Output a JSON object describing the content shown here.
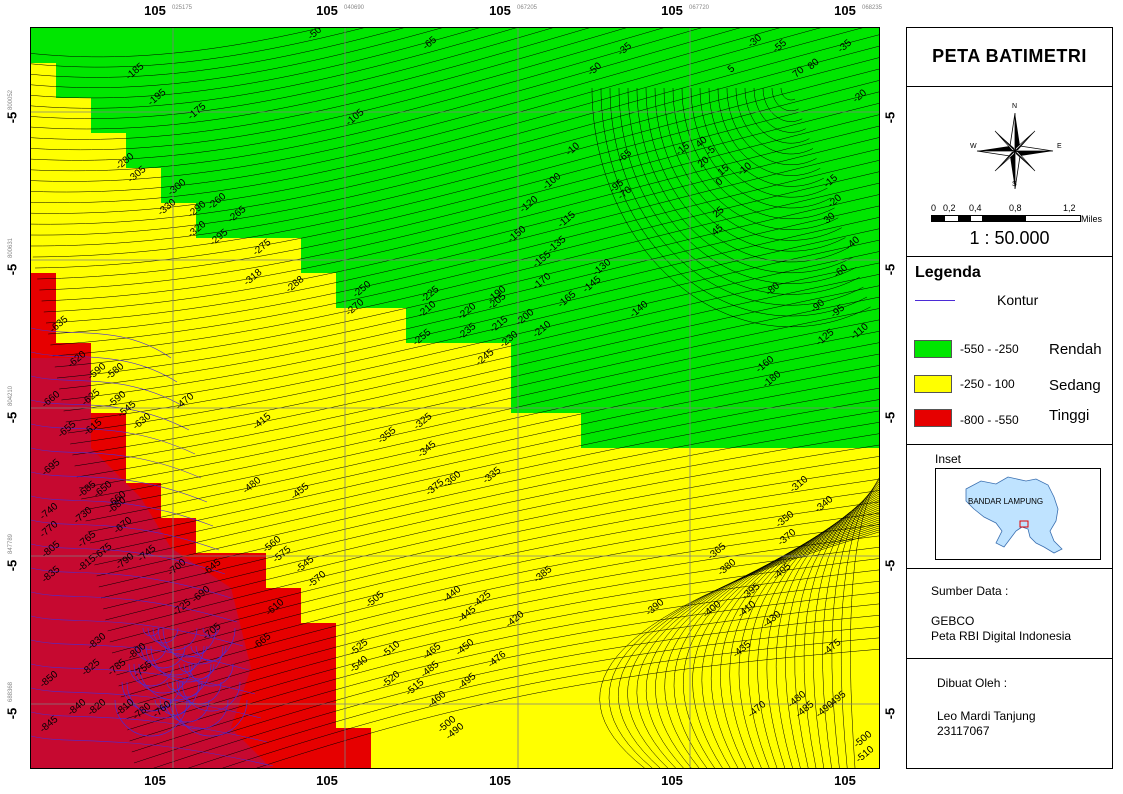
{
  "map": {
    "top_ticks": [
      "105",
      "105",
      "105",
      "105",
      "105"
    ],
    "top_small": [
      "025175",
      "040690",
      "067205",
      "067720",
      "068235"
    ],
    "bottom_ticks": [
      "105",
      "105",
      "105",
      "105",
      "105"
    ],
    "left_ticks": [
      "-5",
      "-5",
      "-5",
      "-5",
      "-5"
    ],
    "left_small": [
      "800052",
      "800631",
      "804210",
      "847789",
      "688368"
    ],
    "right_ticks": [
      "-5",
      "-5",
      "-5",
      "-5",
      "-5"
    ],
    "colors": {
      "rendah": "#00e600",
      "sedang": "#ffff00",
      "tinggi": "#e60000",
      "contour": "#000000",
      "deep_contour": "#4b2bd6"
    },
    "contour_labels": [
      {
        "t": "-50"
      },
      {
        "t": "-65"
      },
      {
        "t": "-35"
      },
      {
        "t": "-50"
      },
      {
        "t": "-30"
      },
      {
        "t": "-55"
      },
      {
        "t": "-35"
      },
      {
        "t": "5"
      },
      {
        "t": "80"
      },
      {
        "t": "70"
      },
      {
        "t": "-20"
      },
      {
        "t": "-185"
      },
      {
        "t": "-195"
      },
      {
        "t": "-175"
      },
      {
        "t": "-105"
      },
      {
        "t": "-10"
      },
      {
        "t": "-15"
      },
      {
        "t": "-65"
      },
      {
        "t": "40"
      },
      {
        "t": "-5"
      },
      {
        "t": "15"
      },
      {
        "t": "-10"
      },
      {
        "t": "-280"
      },
      {
        "t": "-305"
      },
      {
        "t": "-300"
      },
      {
        "t": "-290"
      },
      {
        "t": "-260"
      },
      {
        "t": "-265"
      },
      {
        "t": "-330"
      },
      {
        "t": "-320"
      },
      {
        "t": "-295"
      },
      {
        "t": "-275"
      },
      {
        "t": "-318"
      },
      {
        "t": "-288"
      },
      {
        "t": "-100"
      },
      {
        "t": "-95"
      },
      {
        "t": "-70"
      },
      {
        "t": "-120"
      },
      {
        "t": "-115"
      },
      {
        "t": "-150"
      },
      {
        "t": "-135"
      },
      {
        "t": "-130"
      },
      {
        "t": "-155"
      },
      {
        "t": "-170"
      },
      {
        "t": "-165"
      },
      {
        "t": "-145"
      },
      {
        "t": "-140"
      },
      {
        "t": "-250"
      },
      {
        "t": "-270"
      },
      {
        "t": "-225"
      },
      {
        "t": "-210"
      },
      {
        "t": "-190"
      },
      {
        "t": "-205"
      },
      {
        "t": "-220"
      },
      {
        "t": "-200"
      },
      {
        "t": "-215"
      },
      {
        "t": "-210"
      },
      {
        "t": "-235"
      },
      {
        "t": "-230"
      },
      {
        "t": "-245"
      },
      {
        "t": "-255"
      },
      {
        "t": "20"
      },
      {
        "t": "0"
      },
      {
        "t": "25"
      },
      {
        "t": "45"
      },
      {
        "t": "-15"
      },
      {
        "t": "-20"
      },
      {
        "t": "30"
      },
      {
        "t": "-40"
      },
      {
        "t": "-60"
      },
      {
        "t": "-80"
      },
      {
        "t": "-90"
      },
      {
        "t": "-95"
      },
      {
        "t": "-110"
      },
      {
        "t": "-125"
      },
      {
        "t": "-160"
      },
      {
        "t": "-180"
      },
      {
        "t": "-635"
      },
      {
        "t": "-620"
      },
      {
        "t": "-590"
      },
      {
        "t": "-580"
      },
      {
        "t": "-660"
      },
      {
        "t": "-625"
      },
      {
        "t": "-655"
      },
      {
        "t": "-615"
      },
      {
        "t": "-590"
      },
      {
        "t": "-545"
      },
      {
        "t": "-630"
      },
      {
        "t": "-470"
      },
      {
        "t": "-415"
      },
      {
        "t": "-325"
      },
      {
        "t": "-355"
      },
      {
        "t": "-345"
      },
      {
        "t": "-360"
      },
      {
        "t": "-375"
      },
      {
        "t": "-335"
      },
      {
        "t": "-480"
      },
      {
        "t": "-455"
      },
      {
        "t": "-695"
      },
      {
        "t": "-685"
      },
      {
        "t": "-650"
      },
      {
        "t": "-660"
      },
      {
        "t": "-740"
      },
      {
        "t": "-730"
      },
      {
        "t": "-680"
      },
      {
        "t": "-670"
      },
      {
        "t": "-770"
      },
      {
        "t": "-765"
      },
      {
        "t": "-675"
      },
      {
        "t": "-805"
      },
      {
        "t": "-815"
      },
      {
        "t": "-790"
      },
      {
        "t": "-745"
      },
      {
        "t": "-835"
      },
      {
        "t": "-700"
      },
      {
        "t": "-645"
      },
      {
        "t": "-560"
      },
      {
        "t": "-575"
      },
      {
        "t": "-545"
      },
      {
        "t": "-570"
      },
      {
        "t": "-610"
      },
      {
        "t": "-725"
      },
      {
        "t": "-690"
      },
      {
        "t": "-705"
      },
      {
        "t": "-665"
      },
      {
        "t": "-830"
      },
      {
        "t": "-825"
      },
      {
        "t": "-785"
      },
      {
        "t": "-800"
      },
      {
        "t": "-755"
      },
      {
        "t": "-850"
      },
      {
        "t": "-840"
      },
      {
        "t": "-820"
      },
      {
        "t": "-810"
      },
      {
        "t": "-780"
      },
      {
        "t": "-760"
      },
      {
        "t": "-845"
      },
      {
        "t": "-505"
      },
      {
        "t": "-440"
      },
      {
        "t": "-425"
      },
      {
        "t": "-445"
      },
      {
        "t": "-420"
      },
      {
        "t": "-385"
      },
      {
        "t": "-525"
      },
      {
        "t": "-510"
      },
      {
        "t": "-465"
      },
      {
        "t": "-450"
      },
      {
        "t": "-540"
      },
      {
        "t": "-520"
      },
      {
        "t": "-515"
      },
      {
        "t": "-485"
      },
      {
        "t": "-495"
      },
      {
        "t": "-476"
      },
      {
        "t": "-460"
      },
      {
        "t": "-500"
      },
      {
        "t": "-490"
      },
      {
        "t": "-310"
      },
      {
        "t": "-340"
      },
      {
        "t": "-350"
      },
      {
        "t": "-370"
      },
      {
        "t": "-365"
      },
      {
        "t": "-380"
      },
      {
        "t": "-405"
      },
      {
        "t": "-395"
      },
      {
        "t": "-390"
      },
      {
        "t": "-400"
      },
      {
        "t": "-410"
      },
      {
        "t": "-430"
      },
      {
        "t": "-435"
      },
      {
        "t": "-475"
      },
      {
        "t": "-470"
      },
      {
        "t": "-480"
      },
      {
        "t": "-485"
      },
      {
        "t": "-490"
      },
      {
        "t": "-495"
      },
      {
        "t": "-500"
      },
      {
        "t": "-510"
      }
    ]
  },
  "panel": {
    "title": "PETA BATIMETRI",
    "compass": {
      "n": "N",
      "s": "S",
      "e": "E",
      "w": "W"
    },
    "scale_ticks": [
      "0",
      "0,2",
      "0,4",
      "0,8",
      "1,2"
    ],
    "scale_unit": "Miles",
    "scale_ratio": "1 : 50.000",
    "legend_title": "Legenda",
    "legend_contour": "Kontur",
    "legend_items": [
      {
        "range": "-550 - -250",
        "label": "Rendah",
        "color": "#00e600"
      },
      {
        "range": "-250 - 100",
        "label": "Sedang",
        "color": "#ffff00"
      },
      {
        "range": "-800 - -550",
        "label": "Tinggi",
        "color": "#e60000"
      }
    ],
    "inset_title": "Inset",
    "inset_label": "BANDAR LAMPUNG",
    "source_title": "Sumber Data :",
    "source_lines": [
      "GEBCO",
      "Peta RBI Digital Indonesia"
    ],
    "author_title": "Dibuat Oleh :",
    "author_name": "Leo Mardi Tanjung",
    "author_id": "23117067"
  }
}
